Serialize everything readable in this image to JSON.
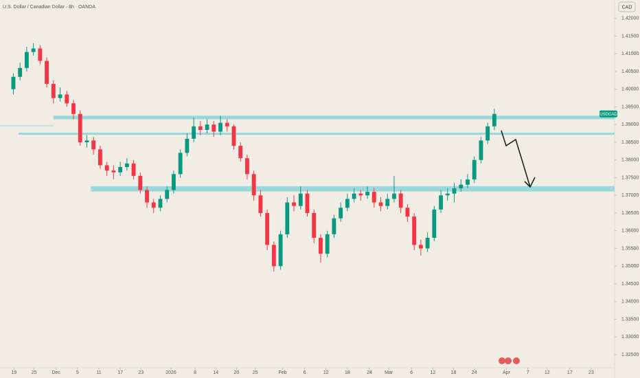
{
  "chart_data": {
    "type": "candlestick",
    "title": "U.S. Dollar / Canadian Dollar · 8h · OANDA",
    "currency": "CAD",
    "symbol": "USDCAD",
    "up_color": "#089981",
    "down_color": "#f23645",
    "zone_color": "#9ad8dc",
    "ylim": [
      1.3213,
      1.4252
    ],
    "xlim": [
      -2,
      90
    ],
    "yticks": [
      {
        "value": 1.42,
        "label": "1.42000"
      },
      {
        "value": 1.415,
        "label": "1.41500"
      },
      {
        "value": 1.41,
        "label": "1.41000"
      },
      {
        "value": 1.405,
        "label": "1.40500"
      },
      {
        "value": 1.4,
        "label": "1.40000"
      },
      {
        "value": 1.395,
        "label": "1.39500"
      },
      {
        "value": 1.39,
        "label": "1.39000"
      },
      {
        "value": 1.385,
        "label": "1.38500"
      },
      {
        "value": 1.38,
        "label": "1.38000"
      },
      {
        "value": 1.375,
        "label": "1.37500"
      },
      {
        "value": 1.37,
        "label": "1.37000"
      },
      {
        "value": 1.365,
        "label": "1.36500"
      },
      {
        "value": 1.36,
        "label": "1.36000"
      },
      {
        "value": 1.355,
        "label": "1.35500"
      },
      {
        "value": 1.35,
        "label": "1.35000"
      },
      {
        "value": 1.345,
        "label": "1.34500"
      },
      {
        "value": 1.34,
        "label": "1.34000"
      },
      {
        "value": 1.335,
        "label": "1.33500"
      },
      {
        "value": 1.33,
        "label": "1.33000"
      },
      {
        "value": 1.325,
        "label": "1.32500"
      }
    ],
    "xticks": [
      {
        "value": 0.1,
        "label": "19"
      },
      {
        "value": 3.1,
        "label": "25"
      },
      {
        "value": 6.4,
        "label": "Dec"
      },
      {
        "value": 9.6,
        "label": "5"
      },
      {
        "value": 12.8,
        "label": "11"
      },
      {
        "value": 16.0,
        "label": "17"
      },
      {
        "value": 19.1,
        "label": "23"
      },
      {
        "value": 23.6,
        "label": "2026"
      },
      {
        "value": 27.2,
        "label": "8"
      },
      {
        "value": 30.3,
        "label": "14"
      },
      {
        "value": 33.4,
        "label": "20"
      },
      {
        "value": 36.2,
        "label": "25"
      },
      {
        "value": 40.3,
        "label": "Feb"
      },
      {
        "value": 43.6,
        "label": "6"
      },
      {
        "value": 46.8,
        "label": "12"
      },
      {
        "value": 50.0,
        "label": "18"
      },
      {
        "value": 53.3,
        "label": "24"
      },
      {
        "value": 56.2,
        "label": "Mar"
      },
      {
        "value": 59.6,
        "label": "6"
      },
      {
        "value": 62.8,
        "label": "12"
      },
      {
        "value": 65.9,
        "label": "18"
      },
      {
        "value": 69.0,
        "label": "24"
      },
      {
        "value": 73.8,
        "label": "Apr"
      },
      {
        "value": 77.0,
        "label": "7"
      },
      {
        "value": 79.9,
        "label": "12"
      },
      {
        "value": 83.3,
        "label": "17"
      },
      {
        "value": 86.5,
        "label": "23"
      }
    ],
    "zones": [
      {
        "start": 6.0,
        "top": 1.3925,
        "bottom": 1.3915
      },
      {
        "start": 0.8,
        "top": 1.3877,
        "bottom": 1.3872
      },
      {
        "start": 11.6,
        "top": 1.3726,
        "bottom": 1.3711
      }
    ],
    "open": [
      1.4,
      1.4035,
      1.406,
      1.4105,
      1.4115,
      1.408,
      1.4015,
      1.3975,
      1.3985,
      1.396,
      1.393,
      1.385,
      1.3855,
      1.383,
      1.3785,
      1.377,
      1.3765,
      1.378,
      1.379,
      1.3755,
      1.3715,
      1.368,
      1.3665,
      1.369,
      1.3715,
      1.376,
      1.382,
      1.386,
      1.3895,
      1.3885,
      1.39,
      1.388,
      1.3905,
      1.3895,
      1.384,
      1.3805,
      1.376,
      1.37,
      1.365,
      1.356,
      1.35,
      1.359,
      1.368,
      1.367,
      1.3705,
      1.365,
      1.358,
      1.3535,
      1.359,
      1.3635,
      1.3665,
      1.369,
      1.3705,
      1.37,
      1.371,
      1.368,
      1.367,
      1.369,
      1.3705,
      1.3665,
      1.364,
      1.356,
      1.355,
      1.358,
      1.366,
      1.37,
      1.3705,
      1.372,
      1.373,
      1.3745,
      1.38,
      1.3855,
      1.3895
    ],
    "high": [
      1.4045,
      1.4075,
      1.412,
      1.413,
      1.4125,
      1.409,
      1.4025,
      1.4005,
      1.3995,
      1.397,
      1.394,
      1.387,
      1.3865,
      1.384,
      1.3795,
      1.3785,
      1.3795,
      1.3805,
      1.38,
      1.3765,
      1.3725,
      1.369,
      1.37,
      1.3725,
      1.377,
      1.383,
      1.3875,
      1.392,
      1.391,
      1.3915,
      1.391,
      1.3925,
      1.3915,
      1.39,
      1.385,
      1.3815,
      1.377,
      1.3715,
      1.366,
      1.357,
      1.36,
      1.3695,
      1.37,
      1.3725,
      1.3715,
      1.366,
      1.359,
      1.36,
      1.3645,
      1.368,
      1.3705,
      1.372,
      1.3715,
      1.3725,
      1.372,
      1.3695,
      1.3705,
      1.3755,
      1.3715,
      1.3675,
      1.365,
      1.3575,
      1.3595,
      1.367,
      1.3715,
      1.372,
      1.3735,
      1.3745,
      1.376,
      1.381,
      1.3865,
      1.3905,
      1.3945
    ],
    "low": [
      1.3985,
      1.4025,
      1.405,
      1.4095,
      1.407,
      1.4005,
      1.396,
      1.3965,
      1.395,
      1.3915,
      1.384,
      1.3835,
      1.3815,
      1.3775,
      1.3755,
      1.3745,
      1.3755,
      1.377,
      1.3745,
      1.3705,
      1.3665,
      1.365,
      1.3655,
      1.368,
      1.3705,
      1.375,
      1.381,
      1.385,
      1.387,
      1.3875,
      1.3865,
      1.387,
      1.388,
      1.383,
      1.3795,
      1.3745,
      1.3685,
      1.364,
      1.3545,
      1.3485,
      1.349,
      1.358,
      1.3655,
      1.366,
      1.364,
      1.3565,
      1.351,
      1.3525,
      1.358,
      1.3625,
      1.3655,
      1.368,
      1.3685,
      1.369,
      1.3665,
      1.3655,
      1.366,
      1.368,
      1.365,
      1.3625,
      1.3545,
      1.353,
      1.354,
      1.357,
      1.365,
      1.3685,
      1.368,
      1.371,
      1.372,
      1.3735,
      1.379,
      1.3845,
      1.3885
    ],
    "close": [
      1.4035,
      1.406,
      1.4105,
      1.4115,
      1.408,
      1.4015,
      1.3975,
      1.3985,
      1.396,
      1.393,
      1.385,
      1.3855,
      1.383,
      1.3785,
      1.377,
      1.3765,
      1.378,
      1.379,
      1.3755,
      1.3715,
      1.368,
      1.3665,
      1.369,
      1.3715,
      1.376,
      1.382,
      1.386,
      1.3895,
      1.3885,
      1.39,
      1.388,
      1.3905,
      1.3895,
      1.384,
      1.3805,
      1.376,
      1.37,
      1.365,
      1.356,
      1.35,
      1.359,
      1.368,
      1.367,
      1.3705,
      1.365,
      1.358,
      1.3535,
      1.359,
      1.3635,
      1.3665,
      1.369,
      1.3705,
      1.37,
      1.371,
      1.368,
      1.367,
      1.369,
      1.3705,
      1.3665,
      1.364,
      1.356,
      1.355,
      1.358,
      1.366,
      1.37,
      1.3705,
      1.372,
      1.373,
      1.3745,
      1.38,
      1.3855,
      1.3895,
      1.393
    ]
  }
}
